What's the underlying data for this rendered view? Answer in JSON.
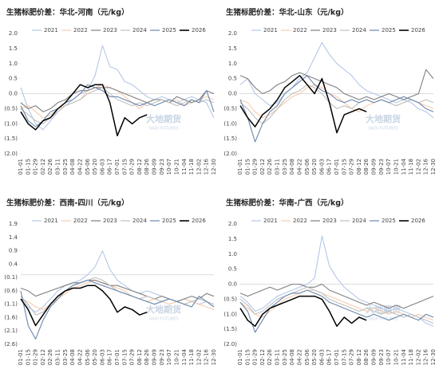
{
  "chart_data": [
    {
      "type": "line",
      "title": "生猪标肥价差：华北-河南（元/kg）",
      "watermark": {
        "name": "大地期货",
        "sub": "DADI FUTURES"
      },
      "categories": [
        "01-01",
        "01-15",
        "01-29",
        "02-12",
        "02-26",
        "03-11",
        "03-25",
        "04-08",
        "04-22",
        "05-06",
        "05-20",
        "06-03",
        "06-17",
        "07-01",
        "07-15",
        "07-29",
        "08-12",
        "08-26",
        "09-09",
        "09-23",
        "10-07",
        "10-21",
        "11-04",
        "11-18",
        "12-02",
        "12-16",
        "12-30"
      ],
      "ylim": [
        -2,
        2
      ],
      "yticks": [
        {
          "value": 2,
          "label": "2.0"
        },
        1.5,
        {
          "value": 1,
          "label": "1.0"
        },
        0.5,
        {
          "value": 0,
          "label": "0.0"
        },
        {
          "value": -0.5,
          "label": "(0.5)"
        },
        {
          "value": -1,
          "label": "(1.0)"
        },
        {
          "value": -1.5,
          "label": "(1.5)"
        },
        {
          "value": -2,
          "label": "(2.0)"
        }
      ],
      "series": [
        {
          "name": "2021",
          "color": "#b4c7e7",
          "values": [
            0.2,
            -0.5,
            -1.0,
            -1.2,
            -0.9,
            -0.6,
            -0.4,
            -0.2,
            0.0,
            0.1,
            0.6,
            1.6,
            0.9,
            0.8,
            0.4,
            0.3,
            0.1,
            -0.1,
            -0.2,
            -0.1,
            -0.2,
            -0.3,
            -0.2,
            -0.1,
            -0.2,
            -0.3,
            -0.8
          ]
        },
        {
          "name": "2022",
          "color": "#f8cbad",
          "values": [
            -0.5,
            -0.4,
            -0.6,
            -0.8,
            -0.7,
            -0.5,
            -0.4,
            -0.3,
            -0.2,
            0.1,
            0.2,
            0.3,
            0.2,
            0.1,
            -0.1,
            -0.3,
            -0.5,
            -0.3,
            -0.2,
            -0.2,
            -0.3,
            -0.2,
            -0.4,
            -0.3,
            -0.2,
            -0.1,
            -0.2
          ]
        },
        {
          "name": "2023",
          "color": "#7f7f7f",
          "values": [
            -0.3,
            -0.5,
            -0.4,
            -0.6,
            -0.5,
            -0.3,
            -0.2,
            0.0,
            0.1,
            0.1,
            0.2,
            0.2,
            0.2,
            0.1,
            0.0,
            -0.1,
            -0.2,
            -0.3,
            -0.2,
            -0.2,
            -0.3,
            -0.1,
            -0.2,
            -0.3,
            -0.2,
            0.1,
            0.0
          ]
        },
        {
          "name": "2024",
          "color": "#bfbfbf",
          "values": [
            -0.5,
            -0.7,
            -0.9,
            -1.0,
            -0.8,
            -0.6,
            -0.4,
            -0.3,
            -0.2,
            0.0,
            0.1,
            0.2,
            0.0,
            -0.2,
            -0.3,
            -0.4,
            -0.3,
            -0.4,
            -0.3,
            -0.2,
            -0.3,
            -0.4,
            -0.3,
            -0.2,
            -0.3,
            -0.2,
            -0.3
          ]
        },
        {
          "name": "2025",
          "color": "#6a87ad",
          "values": [
            -0.4,
            -0.9,
            -1.1,
            -0.9,
            -0.6,
            -0.5,
            -0.3,
            -0.2,
            0.0,
            0.3,
            0.2,
            0.1,
            -0.1,
            -0.1,
            -0.2,
            -0.3,
            -0.4,
            -0.3,
            -0.4,
            -0.3,
            -0.2,
            -0.3,
            -0.4,
            -0.2,
            -0.3,
            0.1,
            -0.6
          ]
        },
        {
          "name": "2026",
          "color": "#000000",
          "values": [
            -0.6,
            -1.0,
            -1.2,
            -0.9,
            -0.8,
            -0.5,
            -0.3,
            0.0,
            0.3,
            0.2,
            0.3,
            0.3,
            -0.3,
            -1.4,
            -0.8,
            -1.0,
            -0.8,
            -0.7,
            null,
            null,
            null,
            null,
            null,
            null,
            null,
            null,
            null
          ]
        }
      ]
    },
    {
      "type": "line",
      "title": "生猪标肥价差：华北-山东（元/kg）",
      "watermark": {
        "name": "大地期货",
        "sub": "DADI FUTURES"
      },
      "categories": [
        "01-01",
        "01-15",
        "01-29",
        "02-12",
        "02-26",
        "03-11",
        "03-25",
        "04-08",
        "04-22",
        "05-06",
        "05-20",
        "06-03",
        "06-17",
        "07-01",
        "07-15",
        "07-29",
        "08-12",
        "08-26",
        "09-09",
        "09-23",
        "10-07",
        "10-21",
        "11-04",
        "11-18",
        "12-02",
        "12-16",
        "12-30"
      ],
      "ylim": [
        -2,
        2
      ],
      "yticks": [
        {
          "value": 2,
          "label": "2.0"
        },
        1.5,
        {
          "value": 1,
          "label": "1.0"
        },
        0.5,
        {
          "value": 0,
          "label": "0.0"
        },
        {
          "value": -0.5,
          "label": "(0.5)"
        },
        {
          "value": -1,
          "label": "(1.0)"
        },
        {
          "value": -1.5,
          "label": "(1.5)"
        },
        {
          "value": -2,
          "label": "(2.0)"
        }
      ],
      "series": [
        {
          "name": "2021",
          "color": "#b4c7e7",
          "values": [
            0.3,
            0.5,
            0.0,
            -0.2,
            -0.4,
            -0.3,
            0.0,
            0.2,
            0.5,
            0.7,
            1.2,
            1.7,
            1.3,
            1.0,
            0.8,
            0.6,
            0.3,
            0.1,
            0.0,
            -0.1,
            -0.2,
            -0.3,
            -0.2,
            -0.3,
            -0.5,
            -0.6,
            -0.8
          ]
        },
        {
          "name": "2022",
          "color": "#f8cbad",
          "values": [
            -0.2,
            -0.3,
            -0.6,
            -0.8,
            -0.7,
            -0.5,
            -0.3,
            -0.1,
            0.0,
            0.2,
            0.3,
            0.2,
            0.0,
            -0.1,
            -0.3,
            -0.5,
            -0.6,
            -0.4,
            -0.3,
            -0.2,
            -0.3,
            -0.4,
            -0.3,
            -0.2,
            -0.3,
            -0.4,
            -0.5
          ]
        },
        {
          "name": "2023",
          "color": "#7f7f7f",
          "values": [
            0.6,
            0.5,
            0.2,
            0.0,
            0.1,
            0.3,
            0.4,
            0.6,
            0.7,
            0.6,
            0.5,
            0.4,
            0.3,
            0.2,
            0.0,
            -0.1,
            -0.2,
            -0.1,
            -0.2,
            -0.1,
            0.0,
            -0.1,
            -0.2,
            -0.1,
            0.0,
            0.8,
            0.5
          ]
        },
        {
          "name": "2024",
          "color": "#bfbfbf",
          "values": [
            -0.3,
            -0.5,
            -0.8,
            -1.0,
            -0.8,
            -0.5,
            -0.2,
            0.0,
            0.1,
            0.3,
            0.2,
            0.0,
            -0.3,
            -0.5,
            -0.4,
            -0.5,
            -0.3,
            -0.2,
            -0.3,
            -0.2,
            -0.3,
            -0.4,
            -0.3,
            -0.2,
            -0.3,
            -0.2,
            -0.3
          ]
        },
        {
          "name": "2025",
          "color": "#6a87ad",
          "values": [
            -0.2,
            -0.8,
            -1.6,
            -1.0,
            -0.6,
            -0.4,
            0.0,
            0.2,
            0.4,
            0.6,
            0.3,
            0.1,
            0.0,
            -0.2,
            -0.3,
            -0.2,
            -0.3,
            -0.2,
            -0.3,
            -0.2,
            -0.3,
            -0.2,
            -0.1,
            -0.2,
            -0.3,
            -0.5,
            -0.6
          ]
        },
        {
          "name": "2026",
          "color": "#000000",
          "values": [
            -0.4,
            -0.8,
            -1.1,
            -0.7,
            -0.5,
            -0.2,
            0.2,
            0.4,
            0.6,
            0.3,
            0.0,
            0.5,
            -0.3,
            -1.3,
            -0.7,
            -0.6,
            -0.5,
            -0.6,
            null,
            null,
            null,
            null,
            null,
            null,
            null,
            null,
            null
          ]
        }
      ]
    },
    {
      "type": "line",
      "title": "生猪标肥价差：西南-四川（元/kg）",
      "watermark": {
        "name": "大地期货",
        "sub": "DADI FUTURES"
      },
      "categories": [
        "01-01",
        "01-15",
        "01-29",
        "02-12",
        "02-26",
        "03-11",
        "03-25",
        "04-08",
        "04-22",
        "05-06",
        "05-20",
        "06-03",
        "06-17",
        "07-01",
        "07-15",
        "07-29",
        "08-12",
        "08-26",
        "09-09",
        "09-23",
        "10-07",
        "10-21",
        "11-04",
        "11-18",
        "12-02",
        "12-16",
        "12-30"
      ],
      "ylim": [
        -2.6,
        1.9
      ],
      "yticks": [
        1.9,
        1.4,
        0.9,
        0.4,
        {
          "value": -0.1,
          "label": "(0.1)"
        },
        {
          "value": -0.6,
          "label": "(0.6)"
        },
        {
          "value": -1.1,
          "label": "(1.1)"
        },
        {
          "value": -1.6,
          "label": "(1.6)"
        },
        {
          "value": -2.1,
          "label": "(2.1)"
        },
        {
          "value": -2.6,
          "label": "(2.6)"
        }
      ],
      "series": [
        {
          "name": "2021",
          "color": "#b4c7e7",
          "values": [
            -0.8,
            -1.2,
            -1.4,
            -1.2,
            -0.9,
            -0.6,
            -0.4,
            -0.3,
            -0.2,
            0.0,
            0.3,
            0.9,
            0.2,
            -0.2,
            -0.4,
            -0.6,
            -0.7,
            -0.6,
            -0.7,
            -0.8,
            -0.9,
            -1.0,
            -0.9,
            -1.0,
            -1.1,
            -1.0,
            -1.2
          ]
        },
        {
          "name": "2022",
          "color": "#f8cbad",
          "values": [
            -0.9,
            -1.0,
            -1.2,
            -1.3,
            -1.1,
            -0.9,
            -0.7,
            -0.5,
            -0.4,
            -0.3,
            -0.2,
            -0.3,
            -0.4,
            -0.5,
            -0.6,
            -0.8,
            -0.9,
            -1.0,
            -0.9,
            -1.0,
            -1.1,
            -1.0,
            -0.9,
            -1.0,
            -1.1,
            -1.2,
            -1.3
          ]
        },
        {
          "name": "2023",
          "color": "#7f7f7f",
          "values": [
            -0.5,
            -0.6,
            -0.8,
            -0.7,
            -0.6,
            -0.5,
            -0.4,
            -0.3,
            -0.3,
            -0.2,
            -0.2,
            -0.3,
            -0.4,
            -0.4,
            -0.5,
            -0.6,
            -0.7,
            -0.8,
            -0.9,
            -0.8,
            -0.9,
            -1.0,
            -0.9,
            -0.8,
            -0.9,
            -0.7,
            -0.8
          ]
        },
        {
          "name": "2024",
          "color": "#bfbfbf",
          "values": [
            -0.8,
            -1.1,
            -1.5,
            -1.4,
            -1.1,
            -0.8,
            -0.6,
            -0.4,
            -0.3,
            -0.2,
            -0.1,
            -0.2,
            -0.4,
            -0.6,
            -0.7,
            -0.8,
            -0.9,
            -0.8,
            -0.9,
            -1.0,
            -0.9,
            -1.0,
            -1.1,
            -1.0,
            -0.9,
            -1.0,
            -1.1
          ]
        },
        {
          "name": "2025",
          "color": "#6a87ad",
          "values": [
            -0.6,
            -1.9,
            -2.4,
            -1.7,
            -1.2,
            -0.9,
            -0.6,
            -0.4,
            -0.3,
            -0.2,
            -0.3,
            -0.4,
            -0.5,
            -0.6,
            -0.7,
            -0.8,
            -0.9,
            -1.0,
            -1.1,
            -1.0,
            -0.9,
            -1.0,
            -1.1,
            -1.2,
            -0.8,
            -1.0,
            -1.2
          ]
        },
        {
          "name": "2026",
          "color": "#000000",
          "values": [
            -0.9,
            -1.3,
            -1.9,
            -1.5,
            -1.1,
            -0.8,
            -0.6,
            -0.5,
            -0.5,
            -0.4,
            -0.4,
            -0.6,
            -0.9,
            -1.4,
            -1.2,
            -1.3,
            -1.5,
            -1.4,
            null,
            null,
            null,
            null,
            null,
            null,
            null,
            null,
            null
          ]
        }
      ]
    },
    {
      "type": "line",
      "title": "生猪标肥价差：华南-广西（元/kg）",
      "watermark": {
        "name": "大地期货",
        "sub": "DADI FUTURES"
      },
      "categories": [
        "01-01",
        "01-15",
        "01-29",
        "02-12",
        "02-26",
        "03-11",
        "03-25",
        "04-08",
        "04-22",
        "05-06",
        "05-20",
        "06-03",
        "06-17",
        "07-01",
        "07-15",
        "07-29",
        "08-12",
        "08-26",
        "09-09",
        "09-23",
        "10-07",
        "10-21",
        "11-04",
        "11-18",
        "12-02",
        "12-16",
        "12-30"
      ],
      "ylim": [
        -2,
        2
      ],
      "yticks": [
        {
          "value": 2,
          "label": "2.0"
        },
        1.5,
        {
          "value": 1,
          "label": "1.0"
        },
        0.5,
        {
          "value": 0,
          "label": "0.0"
        },
        {
          "value": -0.5,
          "label": "(0.5)"
        },
        {
          "value": -1,
          "label": "(1.0)"
        },
        {
          "value": -1.5,
          "label": "(1.5)"
        },
        {
          "value": -2,
          "label": "(2.0)"
        }
      ],
      "series": [
        {
          "name": "2021",
          "color": "#b4c7e7",
          "values": [
            -0.4,
            -0.6,
            -0.9,
            -0.8,
            -0.6,
            -0.4,
            -0.3,
            -0.2,
            -0.1,
            0.0,
            0.2,
            1.6,
            0.6,
            0.2,
            -0.1,
            -0.3,
            -0.5,
            -0.6,
            -0.7,
            -0.8,
            -0.9,
            -0.8,
            -0.9,
            -1.0,
            -1.1,
            -1.3,
            -1.4
          ]
        },
        {
          "name": "2022",
          "color": "#f8cbad",
          "values": [
            -0.6,
            -0.8,
            -1.0,
            -1.1,
            -0.9,
            -0.7,
            -0.5,
            -0.4,
            -0.3,
            -0.2,
            -0.2,
            -0.3,
            -0.4,
            -0.5,
            -0.6,
            -0.7,
            -0.8,
            -0.9,
            -0.8,
            -0.9,
            -1.0,
            -0.9,
            -1.0,
            -1.1,
            -1.0,
            -1.1,
            -1.2
          ]
        },
        {
          "name": "2023",
          "color": "#7f7f7f",
          "values": [
            -0.3,
            -0.4,
            -0.3,
            -0.2,
            -0.1,
            -0.2,
            -0.1,
            0.0,
            0.0,
            -0.1,
            -0.1,
            0.0,
            -0.2,
            -0.3,
            -0.4,
            -0.5,
            -0.6,
            -0.7,
            -0.6,
            -0.7,
            -0.8,
            -0.7,
            -0.8,
            -0.7,
            -0.6,
            -0.5,
            -0.4
          ]
        },
        {
          "name": "2024",
          "color": "#bfbfbf",
          "values": [
            -0.5,
            -0.7,
            -1.0,
            -0.9,
            -0.7,
            -0.5,
            -0.4,
            -0.3,
            -0.2,
            -0.1,
            -0.2,
            -0.3,
            -0.5,
            -0.6,
            -0.7,
            -0.8,
            -0.9,
            -0.8,
            -0.9,
            -1.0,
            -0.9,
            -1.0,
            -1.1,
            -1.0,
            -1.1,
            -1.2,
            -1.3
          ]
        },
        {
          "name": "2025",
          "color": "#6a87ad",
          "values": [
            -0.6,
            -0.9,
            -1.6,
            -1.2,
            -0.8,
            -0.6,
            -0.4,
            -0.3,
            -0.3,
            -0.2,
            -0.3,
            -0.4,
            -0.6,
            -0.7,
            -0.8,
            -0.9,
            -1.0,
            -1.1,
            -1.0,
            -1.1,
            -1.2,
            -1.1,
            -1.0,
            -1.1,
            -1.2,
            -1.0,
            -1.1
          ]
        },
        {
          "name": "2026",
          "color": "#000000",
          "values": [
            -0.8,
            -1.2,
            -1.4,
            -1.0,
            -0.8,
            -0.7,
            -0.6,
            -0.5,
            -0.4,
            -0.4,
            -0.4,
            -0.5,
            -0.9,
            -1.4,
            -1.1,
            -1.3,
            -1.1,
            -1.2,
            null,
            null,
            null,
            null,
            null,
            null,
            null,
            null,
            null
          ]
        }
      ]
    }
  ]
}
